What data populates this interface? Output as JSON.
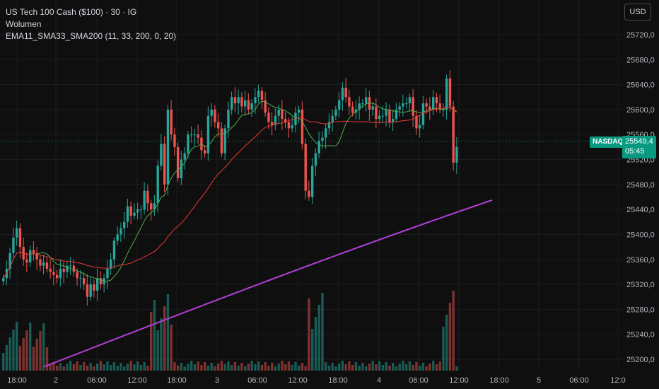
{
  "legend": {
    "symbol": "US Tech 100 Cash ($100) · 30 · IG",
    "volume_label": "Wolumen",
    "ma_label": "EMA11_SMA33_SMA200 (11, 33, 200, 0, 20)"
  },
  "currency_button": "USD",
  "last_price": {
    "exchange": "NASDAQ",
    "price": "25549,4",
    "countdown": "05:45"
  },
  "colors": {
    "up": "#26a69a",
    "down": "#ef5350",
    "ema11": "#4caf50",
    "sma33": "#e53935",
    "sma200": "#b23fd6",
    "price_tag": "#089981"
  },
  "chart_data": {
    "type": "candlestick",
    "y_axis_ticks": [
      "25720,0",
      "25680,0",
      "25640,0",
      "25600,0",
      "25560,0",
      "25520,0",
      "25480,0",
      "25440,0",
      "25400,0",
      "25360,0",
      "25320,0",
      "25280,0",
      "25240,0",
      "25200,0"
    ],
    "x_axis_ticks": [
      "18:00",
      "2",
      "06:00",
      "12:00",
      "18:00",
      "3",
      "06:00",
      "12:00",
      "18:00",
      "4",
      "06:00",
      "12:00",
      "18:00",
      "5",
      "06:00",
      "12:0"
    ],
    "ylim": [
      25190,
      25745
    ],
    "candles_close": [
      25330,
      25345,
      25370,
      25395,
      25410,
      25380,
      25360,
      25355,
      25375,
      25370,
      25360,
      25350,
      25355,
      25345,
      25340,
      25335,
      25330,
      25345,
      25340,
      25350,
      25350,
      25340,
      25330,
      25330,
      25320,
      25300,
      25320,
      25310,
      25330,
      25320,
      25330,
      25345,
      25360,
      25390,
      25400,
      25410,
      25420,
      25445,
      25430,
      25435,
      25440,
      25440,
      25470,
      25450,
      25440,
      25450,
      25510,
      25545,
      25480,
      25600,
      25560,
      25540,
      25490,
      25520,
      25530,
      25560,
      25560,
      25560,
      25555,
      25535,
      25530,
      25590,
      25600,
      25580,
      25570,
      25530,
      25570,
      25600,
      25620,
      25610,
      25620,
      25605,
      25615,
      25600,
      25610,
      25620,
      25630,
      25615,
      25595,
      25580,
      25575,
      25590,
      25600,
      25585,
      25580,
      25570,
      25575,
      25595,
      25600,
      25545,
      25470,
      25460,
      25510,
      25530,
      25550,
      25555,
      25570,
      25580,
      25590,
      25600,
      25615,
      25635,
      25620,
      25605,
      25595,
      25600,
      25610,
      25610,
      25620,
      25600,
      25605,
      25585,
      25590,
      25590,
      25600,
      25580,
      25585,
      25600,
      25605,
      25610,
      25610,
      25620,
      25590,
      25570,
      25575,
      25610,
      25605,
      25600,
      25620,
      25610,
      25600,
      25600,
      25650,
      25605,
      25515,
      25540
    ],
    "sma200_start": 25188,
    "sma200_end": 25455
  }
}
